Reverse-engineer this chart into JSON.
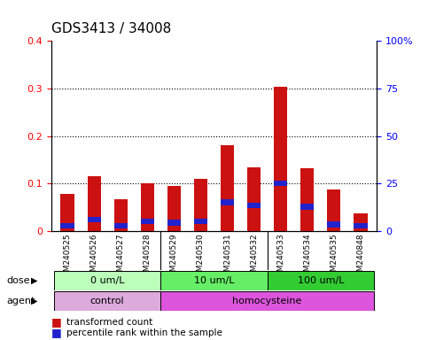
{
  "title": "GDS3413 / 34008",
  "samples": [
    "GSM240525",
    "GSM240526",
    "GSM240527",
    "GSM240528",
    "GSM240529",
    "GSM240530",
    "GSM240531",
    "GSM240532",
    "GSM240533",
    "GSM240534",
    "GSM240535",
    "GSM240848"
  ],
  "red_values": [
    0.078,
    0.115,
    0.067,
    0.1,
    0.095,
    0.11,
    0.18,
    0.135,
    0.303,
    0.132,
    0.088,
    0.037
  ],
  "blue_heights": [
    0.012,
    0.012,
    0.012,
    0.012,
    0.012,
    0.012,
    0.012,
    0.012,
    0.012,
    0.012,
    0.012,
    0.012
  ],
  "blue_bottoms": [
    0.005,
    0.018,
    0.005,
    0.015,
    0.012,
    0.015,
    0.055,
    0.048,
    0.095,
    0.045,
    0.008,
    0.005
  ],
  "ylim_left": [
    0,
    0.4
  ],
  "ylim_right": [
    0,
    100
  ],
  "yticks_left": [
    0,
    0.1,
    0.2,
    0.3,
    0.4
  ],
  "yticks_right": [
    0,
    25,
    50,
    75,
    100
  ],
  "ytick_labels_left": [
    "0",
    "0.1",
    "0.2",
    "0.3",
    "0.4"
  ],
  "ytick_labels_right": [
    "0",
    "25",
    "50",
    "75",
    "100%"
  ],
  "dose_groups": [
    {
      "label": "0 um/L",
      "start": 0,
      "end": 3
    },
    {
      "label": "10 um/L",
      "start": 4,
      "end": 7
    },
    {
      "label": "100 um/L",
      "start": 8,
      "end": 11
    }
  ],
  "dose_colors": [
    "#bbffbb",
    "#66ee66",
    "#33cc33"
  ],
  "agent_groups": [
    {
      "label": "control",
      "start": 0,
      "end": 3
    },
    {
      "label": "homocysteine",
      "start": 4,
      "end": 11
    }
  ],
  "agent_colors": [
    "#ddaadd",
    "#dd55dd"
  ],
  "bar_color_red": "#cc1111",
  "bar_color_blue": "#2222cc",
  "bar_width": 0.5,
  "plot_bg_color": "#ffffff",
  "legend_red": "transformed count",
  "legend_blue": "percentile rank within the sample",
  "dose_label": "dose",
  "agent_label": "agent",
  "title_fontsize": 11,
  "tick_fontsize": 8,
  "label_fontsize": 8,
  "xlabels_bg": "#cccccc",
  "group_boundaries": [
    3.5,
    7.5
  ]
}
